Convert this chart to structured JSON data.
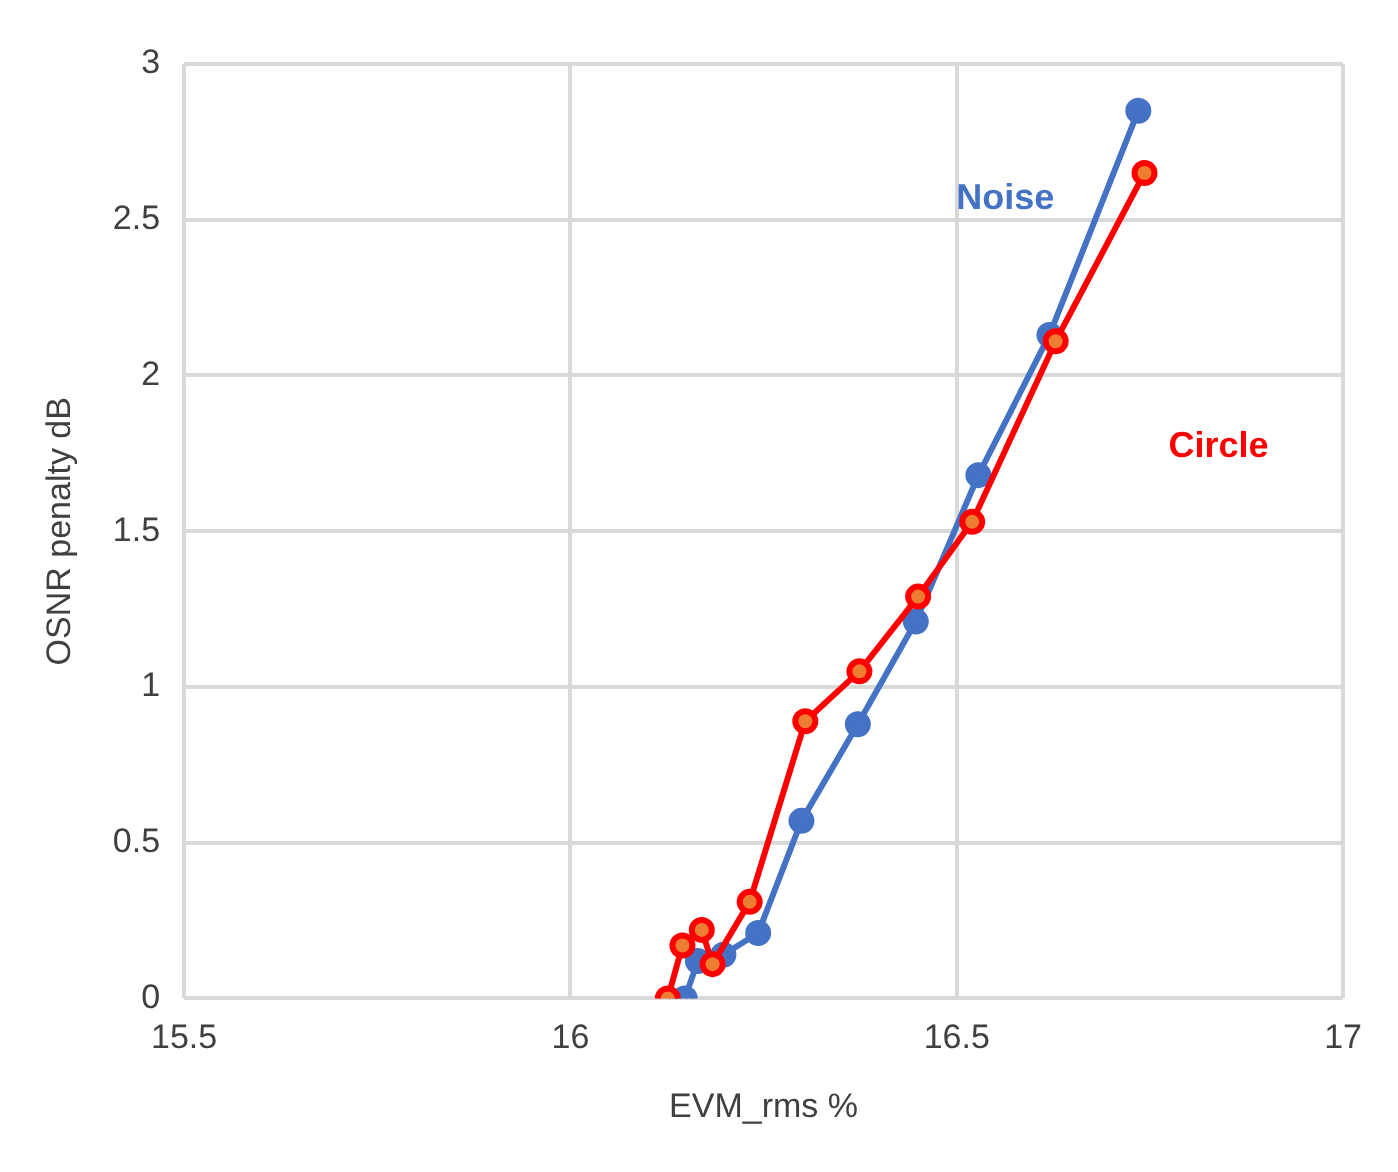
{
  "chart_data": {
    "type": "line",
    "xlabel": "EVM_rms %",
    "ylabel": "OSNR penalty dB",
    "xlim": [
      15.5,
      17
    ],
    "xticks": [
      15.5,
      16,
      16.5,
      17
    ],
    "ylim": [
      0,
      3
    ],
    "yticks": [
      0,
      0.5,
      1,
      1.5,
      2,
      2.5,
      3
    ],
    "grid": true,
    "legend": false,
    "marker": "circle",
    "line_style": "solid",
    "series": [
      {
        "name": "Noise",
        "color": "#4472c4",
        "x": [
          16.148,
          16.165,
          16.198,
          16.243,
          16.299,
          16.372,
          16.447,
          16.528,
          16.62,
          16.735
        ],
        "values": [
          0,
          0.12,
          0.14,
          0.21,
          0.57,
          0.88,
          1.21,
          1.68,
          2.13,
          2.85
        ]
      },
      {
        "name": "Circle",
        "color": "#ff0000",
        "x": [
          16.126,
          16.145,
          16.17,
          16.184,
          16.232,
          16.304,
          16.374,
          16.45,
          16.52,
          16.628,
          16.743
        ],
        "values": [
          0,
          0.17,
          0.22,
          0.11,
          0.31,
          0.89,
          1.05,
          1.29,
          1.53,
          2.11,
          2.65
        ]
      }
    ]
  }
}
